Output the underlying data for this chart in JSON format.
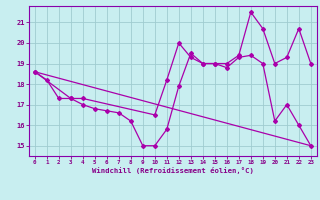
{
  "xlabel": "Windchill (Refroidissement éolien,°C)",
  "bg_color": "#c8eef0",
  "line_color": "#aa00aa",
  "grid_color": "#a0ccd0",
  "text_color": "#880088",
  "spine_color": "#8800aa",
  "xlim": [
    -0.5,
    23.5
  ],
  "ylim": [
    14.5,
    21.8
  ],
  "xticks": [
    0,
    1,
    2,
    3,
    4,
    5,
    6,
    7,
    8,
    9,
    10,
    11,
    12,
    13,
    14,
    15,
    16,
    17,
    18,
    19,
    20,
    21,
    22,
    23
  ],
  "yticks": [
    15,
    16,
    17,
    18,
    19,
    20,
    21
  ],
  "line1_x": [
    0,
    1,
    2,
    3,
    4,
    5,
    6,
    7,
    8,
    9,
    10,
    11,
    12,
    13,
    14,
    15,
    16,
    17,
    18,
    19,
    20,
    21,
    22,
    23
  ],
  "line1_y": [
    18.6,
    18.2,
    17.3,
    17.3,
    17.0,
    16.8,
    16.7,
    16.6,
    16.2,
    15.0,
    15.0,
    15.8,
    17.9,
    19.5,
    19.0,
    19.0,
    18.8,
    19.3,
    19.4,
    19.0,
    16.2,
    17.0,
    16.0,
    15.0
  ],
  "line2_x": [
    0,
    3,
    4,
    10,
    11,
    12,
    13,
    14,
    15,
    16,
    17,
    18,
    19,
    20,
    21,
    22,
    23
  ],
  "line2_y": [
    18.6,
    17.3,
    17.3,
    16.5,
    18.2,
    20.0,
    19.3,
    19.0,
    19.0,
    19.0,
    19.4,
    21.5,
    20.7,
    19.0,
    19.3,
    20.7,
    19.0
  ],
  "line3_x": [
    0,
    23
  ],
  "line3_y": [
    18.6,
    15.0
  ]
}
